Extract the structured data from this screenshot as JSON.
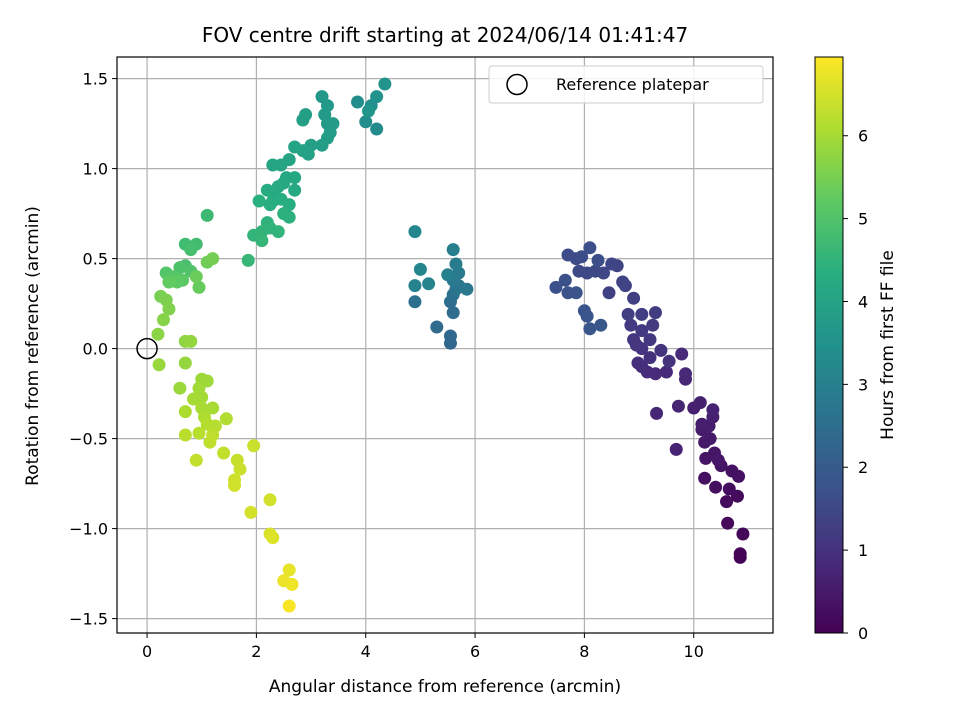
{
  "chart_data": {
    "type": "scatter",
    "title": "FOV centre drift starting at 2024/06/14 01:41:47",
    "xlabel": "Angular distance from reference (arcmin)",
    "ylabel": "Rotation from reference (arcmin)",
    "xlim": [
      -0.55,
      11.45
    ],
    "ylim": [
      -1.58,
      1.62
    ],
    "xticks": [
      0,
      2,
      4,
      6,
      8,
      10
    ],
    "yticks": [
      -1.5,
      -1.0,
      -0.5,
      0.0,
      0.5,
      1.0,
      1.5
    ],
    "xtick_labels": [
      "0",
      "2",
      "4",
      "6",
      "8",
      "10"
    ],
    "ytick_labels": [
      "−1.5",
      "−1.0",
      "−0.5",
      "0.0",
      "0.5",
      "1.0",
      "1.5"
    ],
    "grid": true,
    "colormap": "viridis",
    "colorbar": {
      "label": "Hours from first FF file",
      "range": [
        0,
        6.95
      ],
      "ticks": [
        0,
        1,
        2,
        3,
        4,
        5,
        6
      ],
      "tick_labels": [
        "0",
        "1",
        "2",
        "3",
        "4",
        "5",
        "6"
      ]
    },
    "legend": {
      "position": "upper right",
      "entries": [
        "Reference platepar"
      ]
    },
    "reference_point": {
      "x": 0.0,
      "y": 0.0
    },
    "points": [
      {
        "x": 10.85,
        "y": -1.16,
        "h": 0.05
      },
      {
        "x": 10.85,
        "y": -1.14,
        "h": 0.08
      },
      {
        "x": 10.9,
        "y": -1.03,
        "h": 0.12
      },
      {
        "x": 10.62,
        "y": -0.97,
        "h": 0.15
      },
      {
        "x": 10.8,
        "y": -0.82,
        "h": 0.2
      },
      {
        "x": 10.6,
        "y": -0.85,
        "h": 0.22
      },
      {
        "x": 10.65,
        "y": -0.78,
        "h": 0.25
      },
      {
        "x": 10.4,
        "y": -0.77,
        "h": 0.28
      },
      {
        "x": 10.2,
        "y": -0.72,
        "h": 0.3
      },
      {
        "x": 10.82,
        "y": -0.71,
        "h": 0.33
      },
      {
        "x": 10.7,
        "y": -0.68,
        "h": 0.35
      },
      {
        "x": 10.5,
        "y": -0.65,
        "h": 0.38
      },
      {
        "x": 10.22,
        "y": -0.61,
        "h": 0.4
      },
      {
        "x": 10.38,
        "y": -0.58,
        "h": 0.42
      },
      {
        "x": 10.45,
        "y": -0.62,
        "h": 0.45
      },
      {
        "x": 10.2,
        "y": -0.52,
        "h": 0.48
      },
      {
        "x": 10.3,
        "y": -0.5,
        "h": 0.5
      },
      {
        "x": 10.15,
        "y": -0.45,
        "h": 0.52
      },
      {
        "x": 10.28,
        "y": -0.43,
        "h": 0.55
      },
      {
        "x": 10.15,
        "y": -0.42,
        "h": 0.58
      },
      {
        "x": 10.35,
        "y": -0.38,
        "h": 0.6
      },
      {
        "x": 10.0,
        "y": -0.33,
        "h": 0.62
      },
      {
        "x": 10.12,
        "y": -0.3,
        "h": 0.65
      },
      {
        "x": 10.35,
        "y": -0.34,
        "h": 0.68
      },
      {
        "x": 9.68,
        "y": -0.56,
        "h": 0.7
      },
      {
        "x": 9.72,
        "y": -0.32,
        "h": 0.72
      },
      {
        "x": 9.32,
        "y": -0.36,
        "h": 0.75
      },
      {
        "x": 9.85,
        "y": -0.17,
        "h": 0.78
      },
      {
        "x": 9.85,
        "y": -0.14,
        "h": 0.8
      },
      {
        "x": 9.78,
        "y": -0.03,
        "h": 0.82
      },
      {
        "x": 9.5,
        "y": -0.13,
        "h": 0.85
      },
      {
        "x": 9.3,
        "y": -0.14,
        "h": 0.88
      },
      {
        "x": 9.15,
        "y": -0.13,
        "h": 0.9
      },
      {
        "x": 9.05,
        "y": -0.1,
        "h": 0.92
      },
      {
        "x": 8.98,
        "y": -0.08,
        "h": 0.95
      },
      {
        "x": 9.2,
        "y": -0.05,
        "h": 1.0
      },
      {
        "x": 9.55,
        "y": -0.07,
        "h": 1.02
      },
      {
        "x": 9.4,
        "y": -0.01,
        "h": 1.05
      },
      {
        "x": 9.05,
        "y": 0.0,
        "h": 1.08
      },
      {
        "x": 8.95,
        "y": 0.02,
        "h": 1.1
      },
      {
        "x": 8.9,
        "y": 0.05,
        "h": 1.12
      },
      {
        "x": 9.2,
        "y": 0.05,
        "h": 1.15
      },
      {
        "x": 9.25,
        "y": 0.13,
        "h": 1.18
      },
      {
        "x": 9.05,
        "y": 0.1,
        "h": 1.2
      },
      {
        "x": 8.85,
        "y": 0.13,
        "h": 1.22
      },
      {
        "x": 9.3,
        "y": 0.2,
        "h": 1.25
      },
      {
        "x": 9.05,
        "y": 0.19,
        "h": 1.28
      },
      {
        "x": 8.8,
        "y": 0.19,
        "h": 1.3
      },
      {
        "x": 8.9,
        "y": 0.28,
        "h": 1.32
      },
      {
        "x": 8.45,
        "y": 0.31,
        "h": 1.35
      },
      {
        "x": 8.75,
        "y": 0.35,
        "h": 1.38
      },
      {
        "x": 8.7,
        "y": 0.37,
        "h": 1.4
      },
      {
        "x": 8.6,
        "y": 0.46,
        "h": 1.42
      },
      {
        "x": 8.5,
        "y": 0.47,
        "h": 1.45
      },
      {
        "x": 8.35,
        "y": 0.42,
        "h": 1.48
      },
      {
        "x": 8.2,
        "y": 0.43,
        "h": 1.5
      },
      {
        "x": 8.05,
        "y": 0.42,
        "h": 1.52
      },
      {
        "x": 7.9,
        "y": 0.43,
        "h": 1.55
      },
      {
        "x": 7.85,
        "y": 0.5,
        "h": 1.58
      },
      {
        "x": 7.7,
        "y": 0.52,
        "h": 1.6
      },
      {
        "x": 7.95,
        "y": 0.51,
        "h": 1.62
      },
      {
        "x": 8.25,
        "y": 0.49,
        "h": 1.65
      },
      {
        "x": 8.1,
        "y": 0.56,
        "h": 1.68
      },
      {
        "x": 7.65,
        "y": 0.38,
        "h": 1.7
      },
      {
        "x": 7.48,
        "y": 0.34,
        "h": 1.72
      },
      {
        "x": 7.7,
        "y": 0.31,
        "h": 1.75
      },
      {
        "x": 7.85,
        "y": 0.31,
        "h": 1.78
      },
      {
        "x": 8.0,
        "y": 0.21,
        "h": 1.8
      },
      {
        "x": 8.05,
        "y": 0.18,
        "h": 1.82
      },
      {
        "x": 8.1,
        "y": 0.11,
        "h": 1.85
      },
      {
        "x": 8.3,
        "y": 0.13,
        "h": 1.88
      },
      {
        "x": 5.55,
        "y": 0.03,
        "h": 2.3
      },
      {
        "x": 5.55,
        "y": 0.07,
        "h": 2.35
      },
      {
        "x": 5.3,
        "y": 0.12,
        "h": 2.4
      },
      {
        "x": 5.6,
        "y": 0.2,
        "h": 2.45
      },
      {
        "x": 5.55,
        "y": 0.26,
        "h": 2.5
      },
      {
        "x": 4.9,
        "y": 0.26,
        "h": 2.55
      },
      {
        "x": 5.6,
        "y": 0.3,
        "h": 2.6
      },
      {
        "x": 5.65,
        "y": 0.33,
        "h": 2.65
      },
      {
        "x": 5.7,
        "y": 0.35,
        "h": 2.7
      },
      {
        "x": 5.85,
        "y": 0.33,
        "h": 2.75
      },
      {
        "x": 5.6,
        "y": 0.38,
        "h": 2.8
      },
      {
        "x": 5.7,
        "y": 0.42,
        "h": 2.85
      },
      {
        "x": 5.65,
        "y": 0.47,
        "h": 2.9
      },
      {
        "x": 5.6,
        "y": 0.55,
        "h": 2.95
      },
      {
        "x": 5.5,
        "y": 0.41,
        "h": 3.0
      },
      {
        "x": 4.9,
        "y": 0.35,
        "h": 3.05
      },
      {
        "x": 5.15,
        "y": 0.36,
        "h": 3.1
      },
      {
        "x": 5.0,
        "y": 0.44,
        "h": 3.15
      },
      {
        "x": 4.9,
        "y": 0.65,
        "h": 3.2
      },
      {
        "x": 4.2,
        "y": 1.22,
        "h": 3.3
      },
      {
        "x": 4.0,
        "y": 1.26,
        "h": 3.35
      },
      {
        "x": 3.85,
        "y": 1.37,
        "h": 3.4
      },
      {
        "x": 4.1,
        "y": 1.35,
        "h": 3.45
      },
      {
        "x": 4.2,
        "y": 1.4,
        "h": 3.5
      },
      {
        "x": 4.35,
        "y": 1.47,
        "h": 3.55
      },
      {
        "x": 4.05,
        "y": 1.32,
        "h": 3.6
      },
      {
        "x": 3.2,
        "y": 1.4,
        "h": 3.65
      },
      {
        "x": 3.3,
        "y": 1.35,
        "h": 3.7
      },
      {
        "x": 3.25,
        "y": 1.3,
        "h": 3.72
      },
      {
        "x": 3.3,
        "y": 1.25,
        "h": 3.75
      },
      {
        "x": 3.4,
        "y": 1.25,
        "h": 3.78
      },
      {
        "x": 3.35,
        "y": 1.2,
        "h": 3.8
      },
      {
        "x": 3.3,
        "y": 1.17,
        "h": 3.82
      },
      {
        "x": 3.2,
        "y": 1.13,
        "h": 3.85
      },
      {
        "x": 2.85,
        "y": 1.27,
        "h": 3.88
      },
      {
        "x": 2.9,
        "y": 1.3,
        "h": 3.9
      },
      {
        "x": 3.0,
        "y": 1.13,
        "h": 3.92
      },
      {
        "x": 2.95,
        "y": 1.08,
        "h": 3.95
      },
      {
        "x": 2.85,
        "y": 1.1,
        "h": 3.98
      },
      {
        "x": 2.7,
        "y": 1.12,
        "h": 4.0
      },
      {
        "x": 2.6,
        "y": 1.05,
        "h": 4.02
      },
      {
        "x": 2.45,
        "y": 1.02,
        "h": 4.05
      },
      {
        "x": 2.3,
        "y": 1.02,
        "h": 4.08
      },
      {
        "x": 2.55,
        "y": 0.95,
        "h": 4.1
      },
      {
        "x": 2.7,
        "y": 0.95,
        "h": 4.12
      },
      {
        "x": 2.7,
        "y": 0.88,
        "h": 4.15
      },
      {
        "x": 2.5,
        "y": 0.92,
        "h": 4.18
      },
      {
        "x": 2.4,
        "y": 0.9,
        "h": 4.2
      },
      {
        "x": 2.3,
        "y": 0.87,
        "h": 4.22
      },
      {
        "x": 2.2,
        "y": 0.88,
        "h": 4.25
      },
      {
        "x": 2.3,
        "y": 0.82,
        "h": 4.28
      },
      {
        "x": 2.45,
        "y": 0.83,
        "h": 4.3
      },
      {
        "x": 2.6,
        "y": 0.8,
        "h": 4.32
      },
      {
        "x": 2.25,
        "y": 0.8,
        "h": 4.35
      },
      {
        "x": 2.05,
        "y": 0.82,
        "h": 4.38
      },
      {
        "x": 2.5,
        "y": 0.75,
        "h": 4.4
      },
      {
        "x": 2.6,
        "y": 0.73,
        "h": 4.42
      },
      {
        "x": 2.2,
        "y": 0.7,
        "h": 4.45
      },
      {
        "x": 2.25,
        "y": 0.67,
        "h": 4.48
      },
      {
        "x": 2.4,
        "y": 0.65,
        "h": 4.5
      },
      {
        "x": 2.1,
        "y": 0.65,
        "h": 4.52
      },
      {
        "x": 1.95,
        "y": 0.63,
        "h": 4.55
      },
      {
        "x": 2.1,
        "y": 0.6,
        "h": 4.58
      },
      {
        "x": 1.85,
        "y": 0.49,
        "h": 4.6
      },
      {
        "x": 1.1,
        "y": 0.74,
        "h": 4.7
      },
      {
        "x": 0.7,
        "y": 0.58,
        "h": 4.75
      },
      {
        "x": 0.9,
        "y": 0.58,
        "h": 4.8
      },
      {
        "x": 0.8,
        "y": 0.55,
        "h": 4.85
      },
      {
        "x": 0.7,
        "y": 0.46,
        "h": 4.9
      },
      {
        "x": 0.6,
        "y": 0.45,
        "h": 4.95
      },
      {
        "x": 0.8,
        "y": 0.43,
        "h": 5.0
      },
      {
        "x": 0.35,
        "y": 0.42,
        "h": 5.05
      },
      {
        "x": 0.5,
        "y": 0.4,
        "h": 5.1
      },
      {
        "x": 0.65,
        "y": 0.38,
        "h": 5.15
      },
      {
        "x": 0.55,
        "y": 0.37,
        "h": 5.2
      },
      {
        "x": 0.4,
        "y": 0.37,
        "h": 5.25
      },
      {
        "x": 0.95,
        "y": 0.34,
        "h": 5.3
      },
      {
        "x": 0.9,
        "y": 0.4,
        "h": 5.35
      },
      {
        "x": 1.1,
        "y": 0.48,
        "h": 5.4
      },
      {
        "x": 1.2,
        "y": 0.5,
        "h": 5.45
      },
      {
        "x": 0.25,
        "y": 0.29,
        "h": 5.5
      },
      {
        "x": 0.35,
        "y": 0.27,
        "h": 5.55
      },
      {
        "x": 0.4,
        "y": 0.22,
        "h": 5.6
      },
      {
        "x": 0.3,
        "y": 0.16,
        "h": 5.65
      },
      {
        "x": 0.2,
        "y": 0.08,
        "h": 5.7
      },
      {
        "x": 0.7,
        "y": 0.04,
        "h": 5.75
      },
      {
        "x": 0.8,
        "y": 0.04,
        "h": 5.8
      },
      {
        "x": 0.7,
        "y": -0.08,
        "h": 5.82
      },
      {
        "x": 0.22,
        "y": -0.09,
        "h": 5.85
      },
      {
        "x": 0.6,
        "y": -0.22,
        "h": 5.88
      },
      {
        "x": 1.0,
        "y": -0.17,
        "h": 5.9
      },
      {
        "x": 1.1,
        "y": -0.18,
        "h": 5.92
      },
      {
        "x": 0.95,
        "y": -0.22,
        "h": 5.95
      },
      {
        "x": 1.0,
        "y": -0.27,
        "h": 5.98
      },
      {
        "x": 0.85,
        "y": -0.28,
        "h": 6.0
      },
      {
        "x": 1.2,
        "y": -0.33,
        "h": 6.02
      },
      {
        "x": 1.0,
        "y": -0.33,
        "h": 6.05
      },
      {
        "x": 0.7,
        "y": -0.35,
        "h": 6.08
      },
      {
        "x": 1.05,
        "y": -0.38,
        "h": 6.1
      },
      {
        "x": 1.45,
        "y": -0.39,
        "h": 6.12
      },
      {
        "x": 1.1,
        "y": -0.42,
        "h": 6.15
      },
      {
        "x": 1.25,
        "y": -0.43,
        "h": 6.18
      },
      {
        "x": 0.95,
        "y": -0.47,
        "h": 6.2
      },
      {
        "x": 0.7,
        "y": -0.48,
        "h": 6.22
      },
      {
        "x": 1.2,
        "y": -0.48,
        "h": 6.25
      },
      {
        "x": 1.15,
        "y": -0.52,
        "h": 6.28
      },
      {
        "x": 1.4,
        "y": -0.58,
        "h": 6.3
      },
      {
        "x": 0.9,
        "y": -0.62,
        "h": 6.32
      },
      {
        "x": 1.65,
        "y": -0.62,
        "h": 6.35
      },
      {
        "x": 1.95,
        "y": -0.54,
        "h": 6.38
      },
      {
        "x": 1.7,
        "y": -0.67,
        "h": 6.4
      },
      {
        "x": 1.6,
        "y": -0.73,
        "h": 6.42
      },
      {
        "x": 1.6,
        "y": -0.76,
        "h": 6.45
      },
      {
        "x": 2.25,
        "y": -0.84,
        "h": 6.48
      },
      {
        "x": 1.9,
        "y": -0.91,
        "h": 6.5
      },
      {
        "x": 2.25,
        "y": -1.03,
        "h": 6.55
      },
      {
        "x": 2.3,
        "y": -1.05,
        "h": 6.6
      },
      {
        "x": 2.6,
        "y": -1.23,
        "h": 6.7
      },
      {
        "x": 2.5,
        "y": -1.29,
        "h": 6.75
      },
      {
        "x": 2.65,
        "y": -1.31,
        "h": 6.8
      },
      {
        "x": 2.6,
        "y": -1.43,
        "h": 6.9
      }
    ]
  }
}
